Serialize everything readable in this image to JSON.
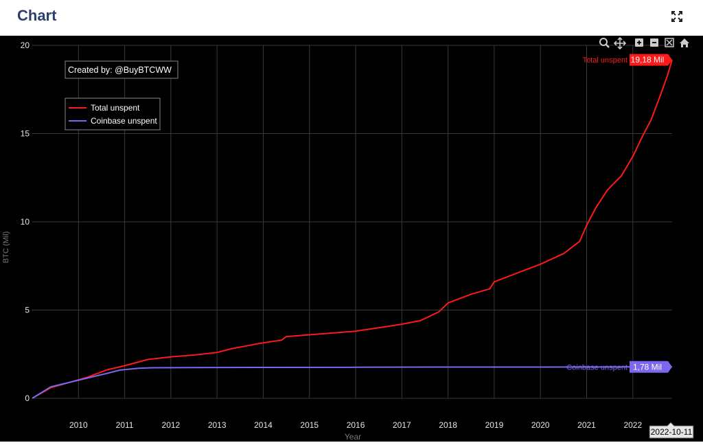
{
  "header": {
    "title": "Chart",
    "expand_icon": "expand-icon"
  },
  "toolbar": {
    "icons": [
      "zoom-icon",
      "pan-icon",
      "zoom-in-icon",
      "zoom-out-icon",
      "autoscale-icon",
      "reset-home-icon"
    ]
  },
  "watermark": "Created by: @BuyBTCWW",
  "colors": {
    "total": "#ff1a1a",
    "coinbase": "#7b68ee",
    "background": "#000000",
    "title": "#2a3f6e"
  },
  "chart_data": {
    "type": "line",
    "xlabel": "Year",
    "ylabel": "BTC (Mil)",
    "xlim": [
      2009.0,
      2022.85
    ],
    "ylim": [
      0,
      20
    ],
    "x_ticks": [
      2010,
      2011,
      2012,
      2013,
      2014,
      2015,
      2016,
      2017,
      2018,
      2019,
      2020,
      2021,
      2022
    ],
    "y_ticks": [
      0,
      5,
      10,
      15,
      20
    ],
    "grid": true,
    "legend_position": "top-left",
    "hover_date": "2022-10-11",
    "series": [
      {
        "name": "Total unspent",
        "color": "#ff1a1a",
        "end_label": "Total unspent",
        "end_value_label": "19,18 Mil",
        "x": [
          2009.0,
          2009.4,
          2009.8,
          2010.2,
          2010.6,
          2011.0,
          2011.5,
          2012.0,
          2012.5,
          2013.0,
          2013.3,
          2013.9,
          2014.4,
          2014.5,
          2015.0,
          2015.5,
          2016.0,
          2016.5,
          2017.0,
          2017.4,
          2017.8,
          2018.0,
          2018.5,
          2018.9,
          2019.0,
          2019.5,
          2020.0,
          2020.5,
          2020.85,
          2021.0,
          2021.2,
          2021.45,
          2021.75,
          2022.0,
          2022.2,
          2022.4,
          2022.6,
          2022.75,
          2022.85
        ],
        "values": [
          0.0,
          0.6,
          0.9,
          1.2,
          1.6,
          1.85,
          2.2,
          2.35,
          2.45,
          2.6,
          2.8,
          3.1,
          3.3,
          3.5,
          3.6,
          3.7,
          3.8,
          4.0,
          4.2,
          4.4,
          4.9,
          5.4,
          5.9,
          6.2,
          6.6,
          7.1,
          7.6,
          8.2,
          8.9,
          9.8,
          10.8,
          11.8,
          12.6,
          13.7,
          14.8,
          15.8,
          17.2,
          18.3,
          19.18
        ]
      },
      {
        "name": "Coinbase unspent",
        "color": "#7b68ee",
        "end_label": "Coinbase unspent",
        "end_value_label": "1,78 Mil",
        "x": [
          2009.0,
          2009.4,
          2009.8,
          2010.2,
          2010.6,
          2010.9,
          2011.3,
          2011.6,
          2012.5,
          2014.0,
          2016.0,
          2018.0,
          2020.0,
          2022.0,
          2022.85
        ],
        "values": [
          0.0,
          0.65,
          0.9,
          1.15,
          1.4,
          1.6,
          1.7,
          1.73,
          1.74,
          1.75,
          1.76,
          1.77,
          1.77,
          1.78,
          1.78
        ]
      }
    ]
  }
}
